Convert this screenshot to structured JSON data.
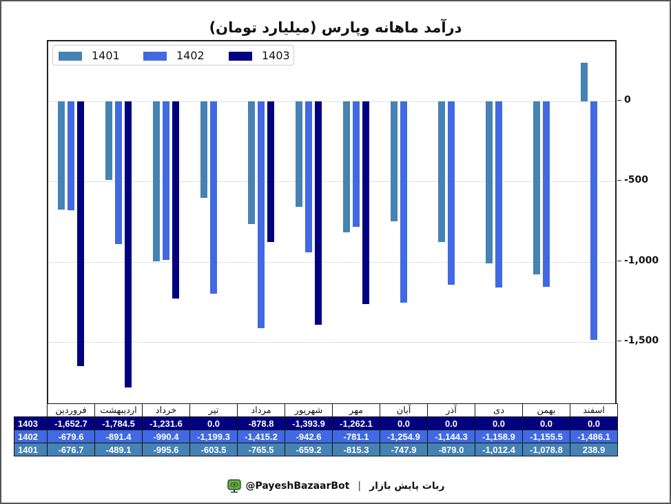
{
  "title": "درآمد ماهانه وپارس (میلیارد تومان)",
  "colors": {
    "1401": "#4682b4",
    "1402": "#4169e1",
    "1403": "#000080"
  },
  "legend": [
    {
      "label": "1401",
      "color": "#4682b4"
    },
    {
      "label": "1402",
      "color": "#4169e1"
    },
    {
      "label": "1403",
      "color": "#000080"
    }
  ],
  "y_axis": {
    "ticks": [
      {
        "value": 0,
        "label": "0"
      },
      {
        "value": -500,
        "label": "-500"
      },
      {
        "value": -1000,
        "label": "-1,000"
      },
      {
        "value": -1500,
        "label": "-1,500"
      }
    ]
  },
  "table": {
    "months": [
      "فروردین",
      "اردیبهشت",
      "خرداد",
      "تیر",
      "مرداد",
      "شهریور",
      "مهر",
      "آبان",
      "آذر",
      "دی",
      "بهمن",
      "اسفند"
    ],
    "rows": [
      {
        "label": "1403",
        "bg": "#000080",
        "values": [
          "-1,652.7",
          "-1,784.5",
          "-1,231.6",
          "0.0",
          "-878.8",
          "-1,393.9",
          "-1,262.1",
          "0.0",
          "0.0",
          "0.0",
          "0.0",
          "0.0"
        ]
      },
      {
        "label": "1402",
        "bg": "#4169e1",
        "values": [
          "-679.6",
          "-891.4",
          "-990.4",
          "-1,199.3",
          "-1,415.2",
          "-942.6",
          "-781.1",
          "-1,254.9",
          "-1,144.3",
          "-1,158.9",
          "-1,155.5",
          "-1,486.1"
        ]
      },
      {
        "label": "1401",
        "bg": "#4682b4",
        "values": [
          "-676.7",
          "-489.1",
          "-995.6",
          "-603.5",
          "-765.5",
          "-659.2",
          "-815.3",
          "-747.9",
          "-879.0",
          "-1,012.4",
          "-1,078.8",
          "238.9"
        ]
      }
    ]
  },
  "footer": {
    "handle": "@PayeshBazaarBot",
    "separator": "|",
    "bot_name": "ربات پایش بازار",
    "icon": "monitor-eye-icon"
  },
  "chart_data": {
    "type": "bar",
    "title": "درآمد ماهانه وپارس (میلیارد تومان)",
    "xlabel": "",
    "ylabel": "",
    "categories": [
      "فروردین",
      "اردیبهشت",
      "خرداد",
      "تیر",
      "مرداد",
      "شهریور",
      "مهر",
      "آبان",
      "آذر",
      "دی",
      "بهمن",
      "اسفند"
    ],
    "series": [
      {
        "name": "1401",
        "color": "#4682b4",
        "values": [
          -676.7,
          -489.1,
          -995.6,
          -603.5,
          -765.5,
          -659.2,
          -815.3,
          -747.9,
          -879.0,
          -1012.4,
          -1078.8,
          238.9
        ]
      },
      {
        "name": "1402",
        "color": "#4169e1",
        "values": [
          -679.6,
          -891.4,
          -990.4,
          -1199.3,
          -1415.2,
          -942.6,
          -781.1,
          -1254.9,
          -1144.3,
          -1158.9,
          -1155.5,
          -1486.1
        ]
      },
      {
        "name": "1403",
        "color": "#000080",
        "values": [
          -1652.7,
          -1784.5,
          -1231.6,
          0.0,
          -878.8,
          -1393.9,
          -1262.1,
          0.0,
          0.0,
          0.0,
          0.0,
          0.0
        ]
      }
    ],
    "yticks": [
      0,
      -500,
      -1000,
      -1500
    ],
    "ylim": [
      -1870,
      370
    ],
    "y_axis_position": "right",
    "grid": "horizontal",
    "legend_position": "upper left",
    "table_below": true
  }
}
